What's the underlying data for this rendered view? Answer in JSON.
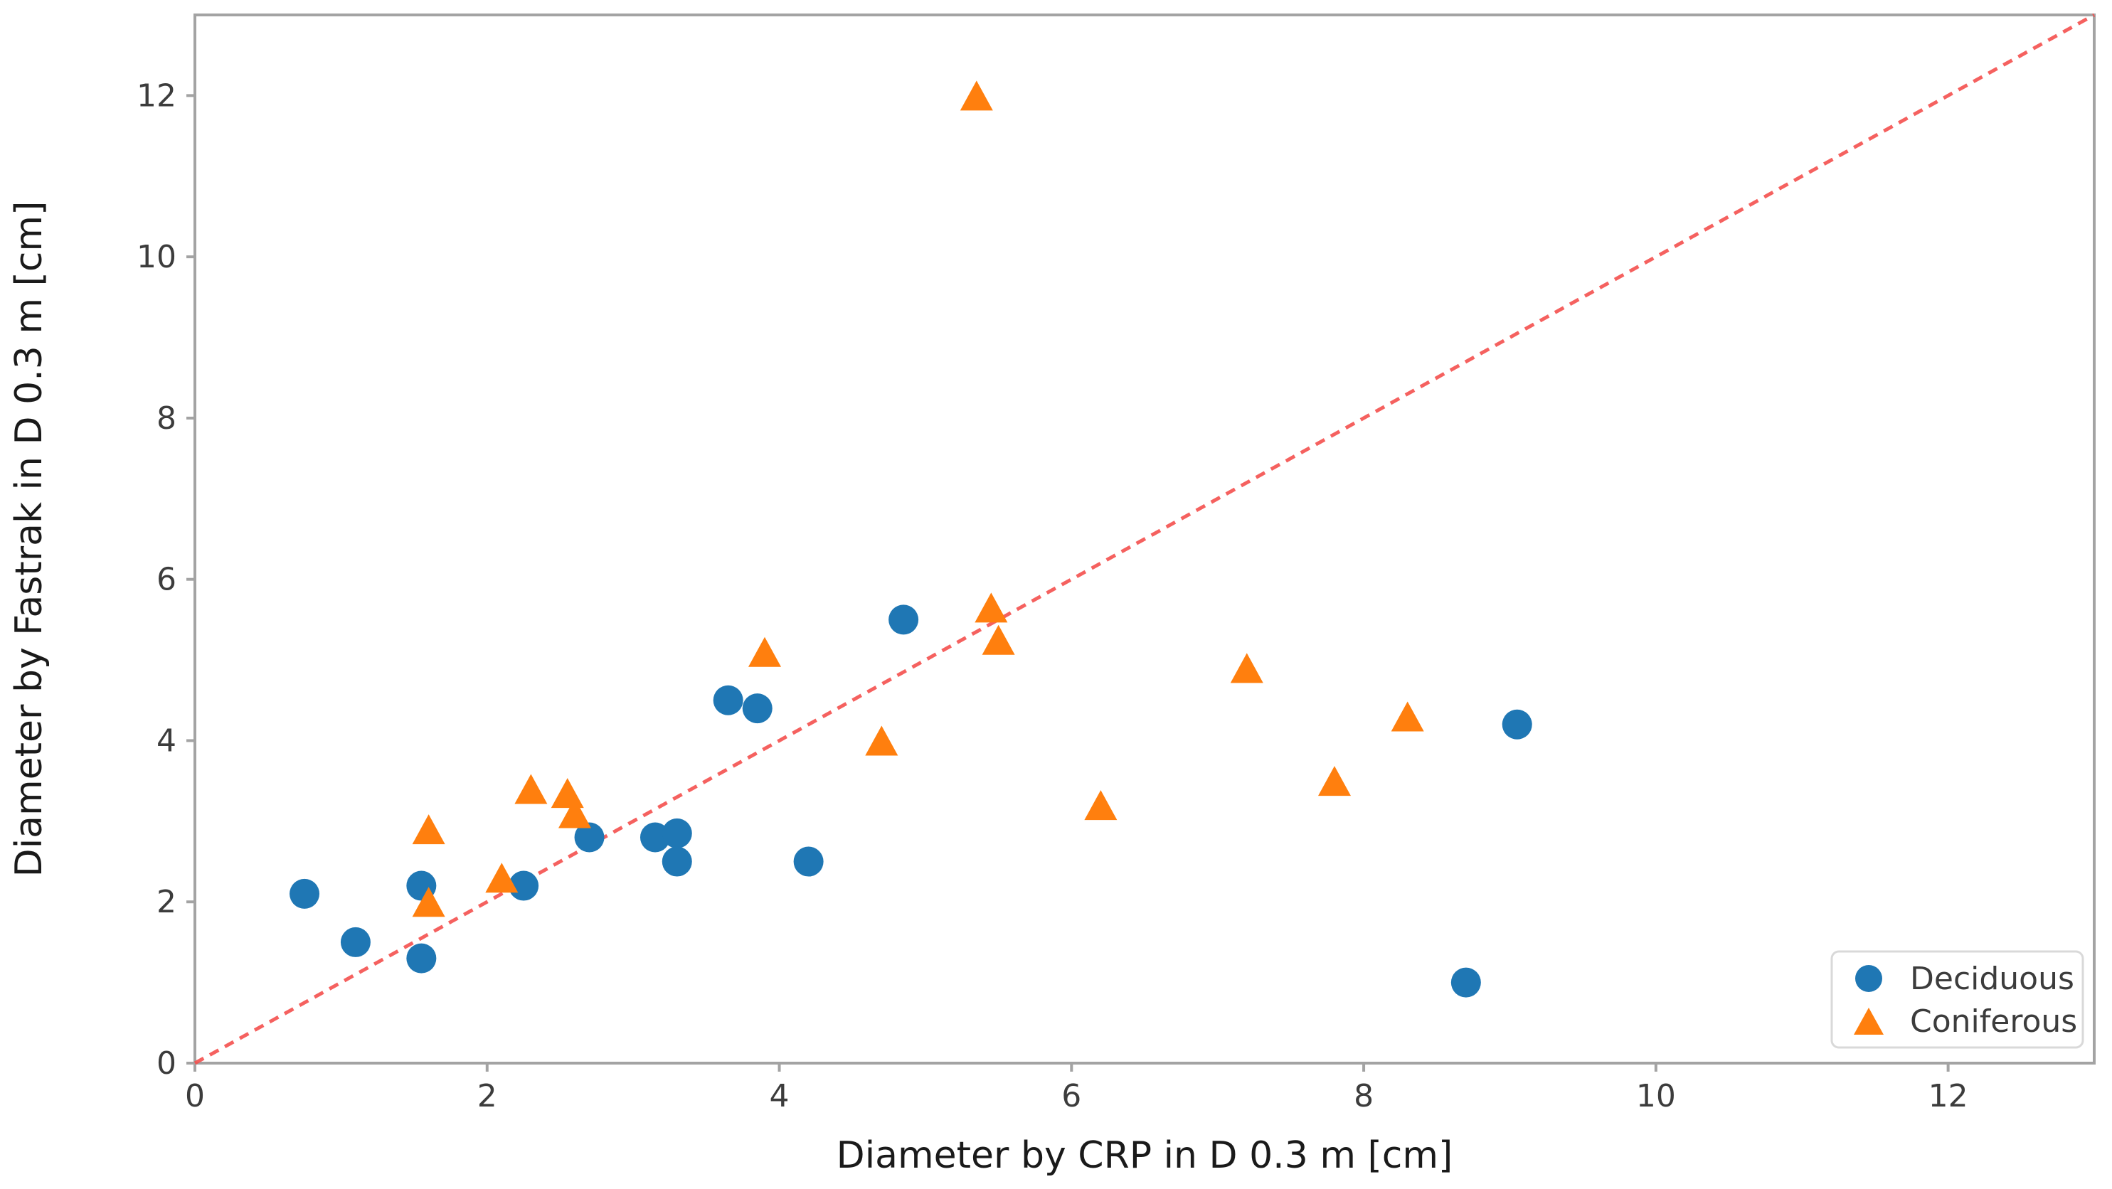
{
  "figure": {
    "background": "#ffffff",
    "frame_color": "#a3a3a3",
    "tick_color": "#a3a3a3",
    "tick_label_color": "#3c3c3c",
    "axis_label_color": "#1a1a1a",
    "legend_border_color": "#d9d9d9",
    "legend_background": "#ffffff"
  },
  "chart_data": {
    "type": "scatter",
    "title": "",
    "xlabel": "Diameter by CRP in D 0.3 m [cm]",
    "ylabel": "Diameter by Fastrak in D 0.3 m [cm]",
    "xlim": [
      0,
      13
    ],
    "ylim": [
      0,
      13
    ],
    "x_ticks": [
      0,
      2,
      4,
      6,
      8,
      10,
      12
    ],
    "y_ticks": [
      0,
      2,
      4,
      6,
      8,
      10,
      12
    ],
    "grid": false,
    "legend_position": "lower-right",
    "reference_line": {
      "name": "identity-line",
      "from": [
        0,
        0
      ],
      "to": [
        13,
        13
      ],
      "style": "dashed",
      "color": "#f4504e"
    },
    "series": [
      {
        "name": "Deciduous",
        "marker": "circle",
        "color": "#1f77b4",
        "points": [
          [
            0.75,
            2.1
          ],
          [
            1.1,
            1.5
          ],
          [
            1.55,
            2.2
          ],
          [
            1.55,
            1.3
          ],
          [
            2.25,
            2.2
          ],
          [
            2.7,
            2.8
          ],
          [
            3.15,
            2.8
          ],
          [
            3.3,
            2.85
          ],
          [
            3.3,
            2.5
          ],
          [
            3.65,
            4.5
          ],
          [
            3.85,
            4.4
          ],
          [
            4.2,
            2.5
          ],
          [
            4.85,
            5.5
          ],
          [
            8.7,
            1.0
          ],
          [
            9.05,
            4.2
          ]
        ]
      },
      {
        "name": "Coniferous",
        "marker": "triangle",
        "color": "#ff7f0e",
        "points": [
          [
            1.6,
            2.9
          ],
          [
            1.6,
            2.0
          ],
          [
            2.1,
            2.3
          ],
          [
            2.3,
            3.4
          ],
          [
            2.55,
            3.35
          ],
          [
            2.6,
            3.1
          ],
          [
            3.9,
            5.1
          ],
          [
            4.7,
            4.0
          ],
          [
            5.35,
            12.0
          ],
          [
            5.45,
            5.65
          ],
          [
            5.5,
            5.25
          ],
          [
            6.2,
            3.2
          ],
          [
            7.2,
            4.9
          ],
          [
            7.8,
            3.5
          ],
          [
            8.3,
            4.3
          ]
        ]
      }
    ]
  }
}
